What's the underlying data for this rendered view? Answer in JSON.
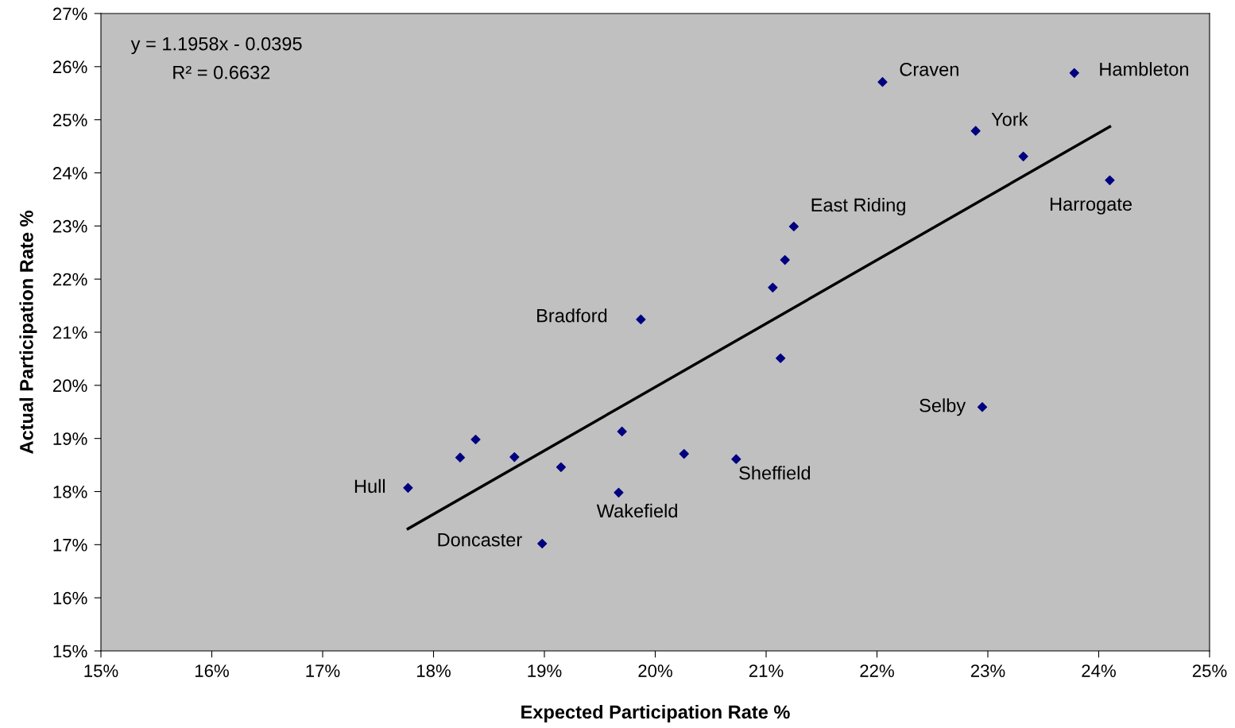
{
  "chart_data": {
    "type": "scatter",
    "xlabel": "Expected Participation Rate %",
    "ylabel": "Actual Participation Rate %",
    "xlim": [
      15,
      25
    ],
    "ylim": [
      15,
      27
    ],
    "xticks": [
      {
        "value": 15,
        "label": "15%"
      },
      {
        "value": 16,
        "label": "16%"
      },
      {
        "value": 17,
        "label": "17%"
      },
      {
        "value": 18,
        "label": "18%"
      },
      {
        "value": 19,
        "label": "19%"
      },
      {
        "value": 20,
        "label": "20%"
      },
      {
        "value": 21,
        "label": "21%"
      },
      {
        "value": 22,
        "label": "22%"
      },
      {
        "value": 23,
        "label": "23%"
      },
      {
        "value": 24,
        "label": "24%"
      },
      {
        "value": 25,
        "label": "25%"
      }
    ],
    "yticks": [
      {
        "value": 15,
        "label": "15%"
      },
      {
        "value": 16,
        "label": "16%"
      },
      {
        "value": 17,
        "label": "17%"
      },
      {
        "value": 18,
        "label": "18%"
      },
      {
        "value": 19,
        "label": "19%"
      },
      {
        "value": 20,
        "label": "20%"
      },
      {
        "value": 21,
        "label": "21%"
      },
      {
        "value": 22,
        "label": "22%"
      },
      {
        "value": 23,
        "label": "23%"
      },
      {
        "value": 24,
        "label": "24%"
      },
      {
        "value": 25,
        "label": "25%"
      },
      {
        "value": 26,
        "label": "26%"
      },
      {
        "value": 27,
        "label": "27%"
      }
    ],
    "grid": false,
    "legend": false,
    "marker": "diamond",
    "series": [
      {
        "color": "#000080",
        "x": [
          17.77,
          18.98,
          18.24,
          18.38,
          18.73,
          19.15,
          19.67,
          19.7,
          19.87,
          20.26,
          20.73,
          21.06,
          21.13,
          21.17,
          21.25,
          22.05,
          22.89,
          22.95,
          23.32,
          23.78,
          24.1
        ],
        "values": [
          18.07,
          17.02,
          18.64,
          18.98,
          18.65,
          18.46,
          17.98,
          19.13,
          21.24,
          18.71,
          18.61,
          21.84,
          20.51,
          22.36,
          22.99,
          25.71,
          24.79,
          19.59,
          24.31,
          25.88,
          23.86
        ]
      },
      {
        "type": "line",
        "color": "#000000",
        "marker": "none",
        "x": [
          17.77,
          24.1
        ],
        "values": [
          17.3,
          24.87
        ]
      }
    ],
    "annotations": [
      "y = 1.1958x - 0.0395",
      "R² = 0.6632",
      {
        "text": "Hull",
        "x": 17.77,
        "y": 18.07
      },
      {
        "text": "Doncaster",
        "x": 18.98,
        "y": 17.02
      },
      {
        "text": "Wakefield",
        "x": 19.67,
        "y": 17.98
      },
      {
        "text": "Bradford",
        "x": 19.87,
        "y": 21.24
      },
      {
        "text": "Sheffield",
        "x": 20.73,
        "y": 18.61
      },
      {
        "text": "East Riding",
        "x": 21.25,
        "y": 22.99
      },
      {
        "text": "Craven",
        "x": 22.05,
        "y": 25.71
      },
      {
        "text": "York",
        "x": 22.89,
        "y": 24.79
      },
      {
        "text": "Selby",
        "x": 22.95,
        "y": 19.59
      },
      {
        "text": "Hambleton",
        "x": 23.78,
        "y": 25.88
      },
      {
        "text": "Harrogate",
        "x": 24.1,
        "y": 23.86
      }
    ]
  }
}
